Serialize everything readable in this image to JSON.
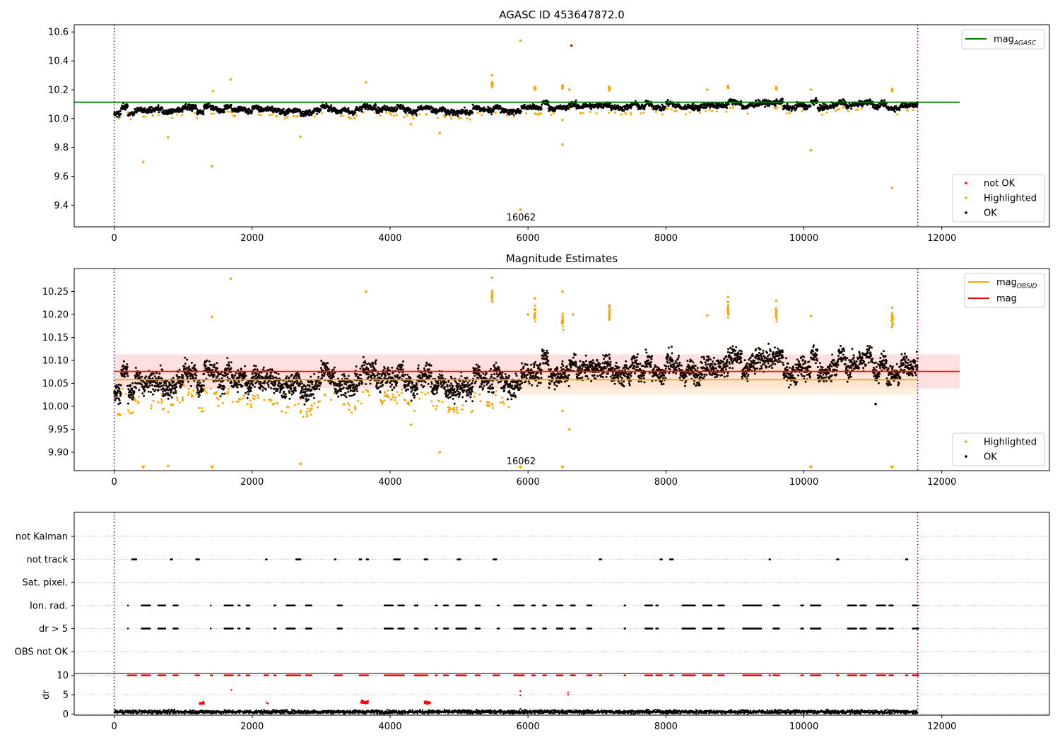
{
  "chart_data": [
    {
      "type": "scatter",
      "title": "AGASC ID 453647872.0",
      "xlim": [
        -580,
        13560
      ],
      "ylim": [
        9.25,
        10.65
      ],
      "xticks": [
        0,
        2000,
        4000,
        6000,
        8000,
        10000,
        12000
      ],
      "yticks": [
        9.4,
        9.6,
        9.8,
        10.0,
        10.2,
        10.4,
        10.6
      ],
      "grid": false,
      "legend_lines_position": "top-right",
      "legend_points_position": "bottom-right",
      "vlines": [
        0,
        11650
      ],
      "lines": [
        {
          "name": "mag",
          "subscript": "AGASC",
          "y": 10.113,
          "x": [
            -580,
            12260
          ],
          "color": "#008000"
        }
      ],
      "annotation": {
        "text": "16062",
        "x": 5900
      },
      "series": [
        {
          "name": "not OK",
          "color": "#ff0000",
          "points": [
            [
              6630,
              10.505
            ]
          ]
        },
        {
          "name": "Highlighted",
          "color": "#ffa500",
          "points": [
            [
              420,
              9.7
            ],
            [
              780,
              9.87
            ],
            [
              1420,
              9.67
            ],
            [
              1430,
              10.19
            ],
            [
              1690,
              10.27
            ],
            [
              2700,
              9.875
            ],
            [
              3650,
              10.25
            ],
            [
              4300,
              9.96
            ],
            [
              4720,
              9.9
            ],
            [
              5480,
              10.3
            ],
            [
              5480,
              10.25
            ],
            [
              5480,
              10.22
            ],
            [
              5890,
              10.54
            ],
            [
              5890,
              9.37
            ],
            [
              6500,
              9.82
            ],
            [
              6500,
              9.99
            ],
            [
              6600,
              10.2
            ],
            [
              8600,
              10.2
            ],
            [
              10100,
              9.78
            ],
            [
              10100,
              10.2
            ],
            [
              11280,
              9.52
            ]
          ]
        },
        {
          "name": "OK",
          "color": "#000000",
          "points": []
        }
      ]
    },
    {
      "type": "scatter",
      "title": "Magnitude Estimates",
      "xlim": [
        -580,
        13560
      ],
      "ylim": [
        9.86,
        10.3
      ],
      "xticks": [
        0,
        2000,
        4000,
        6000,
        8000,
        10000,
        12000
      ],
      "yticks": [
        9.9,
        9.95,
        10.0,
        10.05,
        10.1,
        10.15,
        10.2,
        10.25
      ],
      "grid": false,
      "legend_lines_position": "top-right",
      "legend_points_position": "bottom-right",
      "vlines": [
        0,
        11650
      ],
      "lines": [
        {
          "name": "mag",
          "subscript": "OBSID",
          "y": 10.058,
          "x": [
            0,
            11650
          ],
          "color": "#ffa500"
        },
        {
          "name": "mag",
          "subscript": "",
          "y": 10.076,
          "x": [
            0,
            12260
          ],
          "color": "#ff0000"
        }
      ],
      "bands": [
        {
          "x": [
            0,
            12260
          ],
          "y": [
            10.039,
            10.113
          ],
          "color": "#ffcccc"
        },
        {
          "x": [
            5900,
            11650
          ],
          "y": [
            10.025,
            10.09
          ],
          "color": "#ffe5cc"
        }
      ],
      "annotation": {
        "text": "16062",
        "x": 5900
      },
      "series": [
        {
          "name": "Highlighted",
          "color": "#ffa500",
          "points": [
            [
              780,
              9.87
            ],
            [
              1420,
              10.195
            ],
            [
              1690,
              10.278
            ],
            [
              2700,
              9.875
            ],
            [
              3650,
              10.25
            ],
            [
              4300,
              9.96
            ],
            [
              4720,
              9.9
            ],
            [
              5480,
              10.28
            ],
            [
              5480,
              10.25
            ],
            [
              5480,
              10.23
            ],
            [
              6000,
              10.2
            ],
            [
              6100,
              10.235
            ],
            [
              6500,
              10.25
            ],
            [
              6500,
              9.99
            ],
            [
              6600,
              9.95
            ],
            [
              6650,
              10.2
            ],
            [
              7180,
              10.22
            ],
            [
              8600,
              10.198
            ],
            [
              8900,
              10.238
            ],
            [
              9600,
              10.23
            ],
            [
              10100,
              10.197
            ],
            [
              11280,
              10.215
            ]
          ]
        },
        {
          "name": "OK",
          "color": "#000000",
          "points": [
            [
              11040,
              10.005
            ]
          ]
        }
      ],
      "offscale_markers": [
        420,
        1420,
        5890,
        6500,
        10100,
        11280
      ]
    },
    {
      "type": "scatter",
      "xlim": [
        -580,
        13560
      ],
      "categories": [
        "not Kalman",
        "not track",
        "Sat. pixel.",
        "Ion. rad.",
        "dr > 5",
        "OBS not OK"
      ],
      "vlines": [
        0,
        11650
      ],
      "flag_ranges": {
        "not track": [
          [
            260,
            320
          ],
          [
            820,
            840
          ],
          [
            1190,
            1230
          ],
          [
            2200,
            2210
          ],
          [
            2640,
            2700
          ],
          [
            3200,
            3210
          ],
          [
            3560,
            3580
          ],
          [
            3660,
            3680
          ],
          [
            4060,
            4140
          ],
          [
            4500,
            4540
          ],
          [
            4980,
            5020
          ],
          [
            5500,
            5540
          ],
          [
            7040,
            7060
          ],
          [
            7920,
            7940
          ],
          [
            8060,
            8100
          ],
          [
            9500,
            9510
          ],
          [
            10480,
            10500
          ],
          [
            11480,
            11500
          ]
        ],
        "Ion. rad.": [
          [
            200,
            200
          ],
          [
            400,
            520
          ],
          [
            640,
            740
          ],
          [
            860,
            920
          ],
          [
            1400,
            1400
          ],
          [
            1600,
            1720
          ],
          [
            1800,
            1820
          ],
          [
            1920,
            1960
          ],
          [
            2320,
            2340
          ],
          [
            2500,
            2620
          ],
          [
            2780,
            2860
          ],
          [
            3240,
            3300
          ],
          [
            3920,
            4040
          ],
          [
            4120,
            4200
          ],
          [
            4360,
            4400
          ],
          [
            4660,
            4680
          ],
          [
            4780,
            4840
          ],
          [
            4960,
            5100
          ],
          [
            5240,
            5300
          ],
          [
            5560,
            5580
          ],
          [
            5800,
            5940
          ],
          [
            6060,
            6100
          ],
          [
            6220,
            6260
          ],
          [
            6420,
            6500
          ],
          [
            6620,
            6680
          ],
          [
            6860,
            6920
          ],
          [
            7400,
            7410
          ],
          [
            7700,
            7800
          ],
          [
            7860,
            7880
          ],
          [
            8240,
            8420
          ],
          [
            8540,
            8660
          ],
          [
            8760,
            8840
          ],
          [
            9120,
            9380
          ],
          [
            9560,
            9640
          ],
          [
            9960,
            9990
          ],
          [
            10100,
            10240
          ],
          [
            10640,
            10760
          ],
          [
            10820,
            10900
          ],
          [
            11060,
            11180
          ],
          [
            11240,
            11290
          ],
          [
            11580,
            11660
          ]
        ],
        "dr > 5": [
          [
            200,
            200
          ],
          [
            400,
            520
          ],
          [
            640,
            740
          ],
          [
            860,
            920
          ],
          [
            1400,
            1400
          ],
          [
            1600,
            1720
          ],
          [
            1800,
            1820
          ],
          [
            1920,
            1960
          ],
          [
            2320,
            2340
          ],
          [
            2500,
            2620
          ],
          [
            2780,
            2860
          ],
          [
            3240,
            3300
          ],
          [
            3920,
            4040
          ],
          [
            4120,
            4200
          ],
          [
            4360,
            4400
          ],
          [
            4660,
            4680
          ],
          [
            4780,
            4840
          ],
          [
            4960,
            5100
          ],
          [
            5240,
            5300
          ],
          [
            5560,
            5580
          ],
          [
            5800,
            5940
          ],
          [
            6060,
            6100
          ],
          [
            6220,
            6260
          ],
          [
            6420,
            6500
          ],
          [
            6620,
            6680
          ],
          [
            6860,
            6920
          ],
          [
            7400,
            7410
          ],
          [
            7700,
            7800
          ],
          [
            7860,
            7880
          ],
          [
            8240,
            8420
          ],
          [
            8540,
            8660
          ],
          [
            8760,
            8840
          ],
          [
            9120,
            9380
          ],
          [
            9560,
            9640
          ],
          [
            9960,
            9990
          ],
          [
            10100,
            10240
          ],
          [
            10640,
            10760
          ],
          [
            10820,
            10900
          ],
          [
            11060,
            11180
          ],
          [
            11240,
            11290
          ],
          [
            11580,
            11660
          ]
        ]
      }
    },
    {
      "type": "scatter",
      "xlim": [
        -580,
        13560
      ],
      "ylim": [
        -0.3,
        10.5
      ],
      "xticks": [
        0,
        2000,
        4000,
        6000,
        8000,
        10000,
        12000
      ],
      "yticks": [
        0,
        5,
        10
      ],
      "ylabel": "dr",
      "vlines": [
        0,
        11650
      ],
      "series": [
        {
          "name": "dr",
          "color": "#000000",
          "points": [
            [
              5890,
              1.3
            ]
          ]
        },
        {
          "name": "dr > 5",
          "color": "#ff0000",
          "points": [
            [
              1700,
              6.2
            ],
            [
              5890,
              5.9
            ],
            [
              5890,
              4.8
            ],
            [
              6580,
              5.6
            ],
            [
              6580,
              5.0
            ],
            [
              2210,
              2.9
            ],
            [
              2230,
              2.7
            ]
          ],
          "clusters": [
            [
              1240,
              1300,
              2.9
            ],
            [
              3580,
              3680,
              3.0
            ],
            [
              4500,
              4580,
              3.0
            ]
          ],
          "top_ranges": [
            [
              200,
              320
            ],
            [
              400,
              520
            ],
            [
              640,
              740
            ],
            [
              860,
              920
            ],
            [
              1180,
              1230
            ],
            [
              1400,
              1420
            ],
            [
              1600,
              1720
            ],
            [
              1800,
              1820
            ],
            [
              1920,
              1960
            ],
            [
              2180,
              2230
            ],
            [
              2320,
              2340
            ],
            [
              2500,
              2620
            ],
            [
              2640,
              2700
            ],
            [
              2780,
              2860
            ],
            [
              3200,
              3300
            ],
            [
              3560,
              3680
            ],
            [
              3920,
              4200
            ],
            [
              4360,
              4540
            ],
            [
              4660,
              4680
            ],
            [
              4780,
              4840
            ],
            [
              4960,
              5100
            ],
            [
              5240,
              5300
            ],
            [
              5500,
              5580
            ],
            [
              5800,
              5940
            ],
            [
              6060,
              6100
            ],
            [
              6220,
              6260
            ],
            [
              6420,
              6500
            ],
            [
              6620,
              6680
            ],
            [
              6860,
              6920
            ],
            [
              7040,
              7060
            ],
            [
              7400,
              7410
            ],
            [
              7700,
              7800
            ],
            [
              7860,
              7940
            ],
            [
              8060,
              8100
            ],
            [
              8240,
              8420
            ],
            [
              8540,
              8660
            ],
            [
              8760,
              8840
            ],
            [
              9120,
              9380
            ],
            [
              9500,
              9510
            ],
            [
              9560,
              9640
            ],
            [
              9960,
              9990
            ],
            [
              10100,
              10240
            ],
            [
              10480,
              10500
            ],
            [
              10640,
              10760
            ],
            [
              10820,
              10900
            ],
            [
              11060,
              11180
            ],
            [
              11240,
              11290
            ],
            [
              11480,
              11500
            ],
            [
              11580,
              11660
            ]
          ]
        }
      ]
    }
  ]
}
